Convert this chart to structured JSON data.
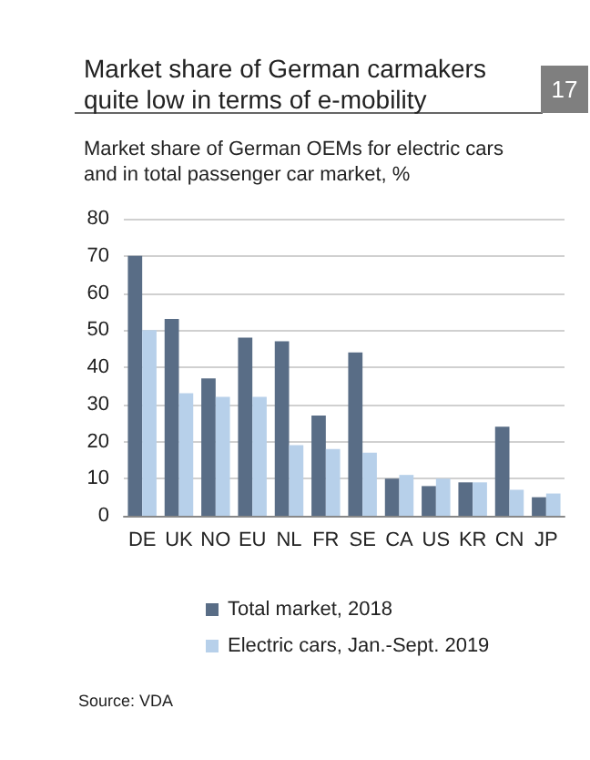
{
  "chart_data": {
    "type": "bar",
    "title": "Market share of German carmakers\nquite low in terms of e-mobility",
    "subtitle": "Market share of German OEMs for electric cars\nand in total passenger car market, %",
    "categories": [
      "DE",
      "UK",
      "NO",
      "EU",
      "NL",
      "FR",
      "SE",
      "CA",
      "US",
      "KR",
      "CN",
      "JP"
    ],
    "series": [
      {
        "name": "Total market, 2018",
        "color": "#596d86",
        "values": [
          70,
          53,
          37,
          48,
          47,
          27,
          44,
          10,
          8,
          9,
          24,
          5
        ]
      },
      {
        "name": "Electric cars, Jan.-Sept. 2019",
        "color": "#b7d0ea",
        "values": [
          50,
          33,
          32,
          32,
          19,
          18,
          17,
          11,
          10,
          9,
          7,
          6
        ]
      }
    ],
    "ylim": [
      0,
      80
    ],
    "yticks": [
      0,
      10,
      20,
      30,
      40,
      50,
      60,
      70,
      80
    ],
    "grid": "y",
    "legend": "bottom",
    "annotations": [
      "17",
      "Source: VDA"
    ]
  }
}
